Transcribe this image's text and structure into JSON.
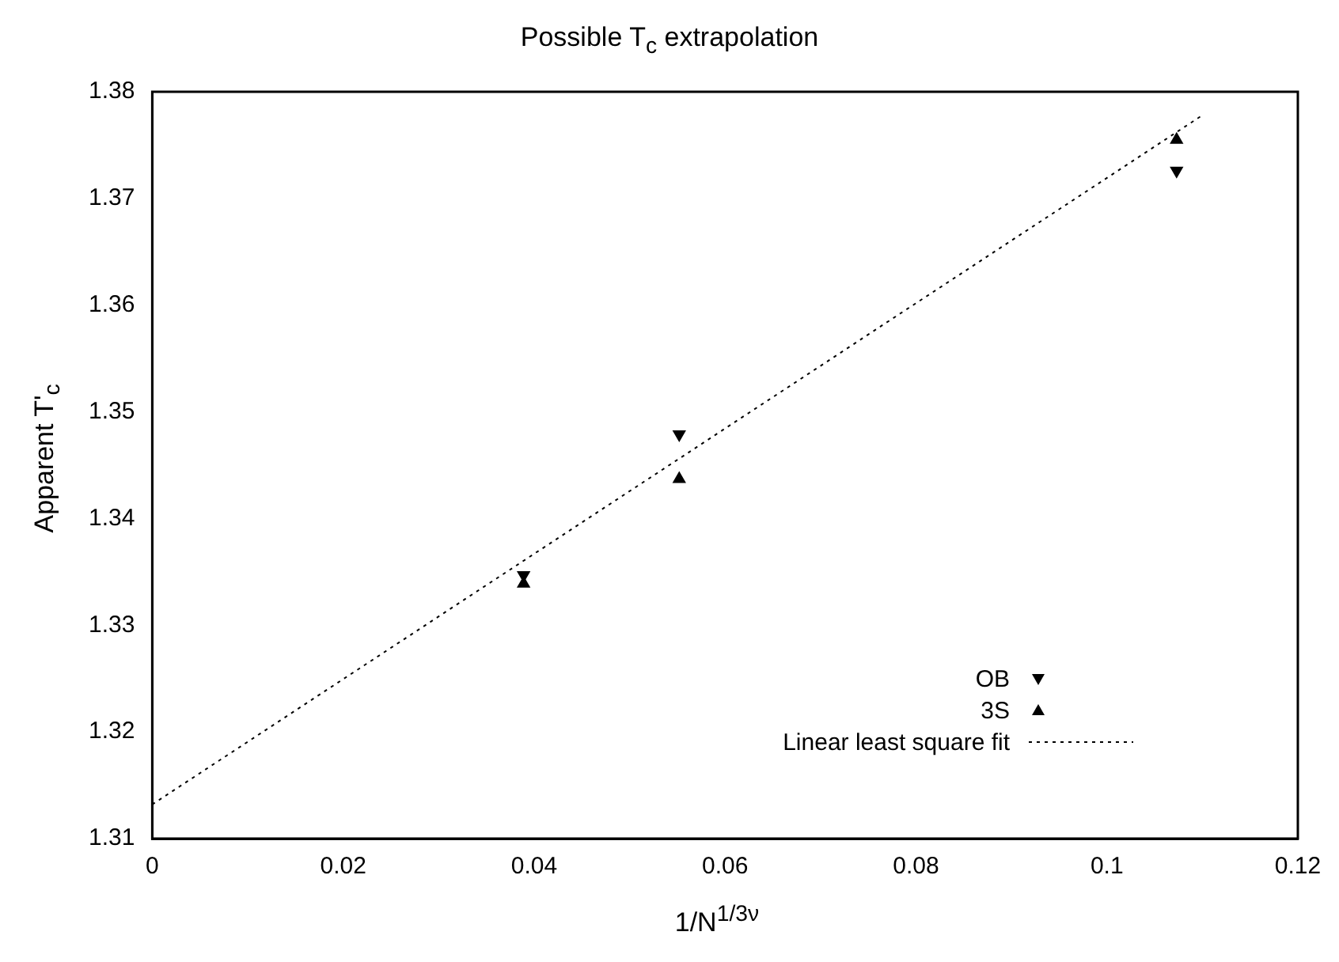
{
  "chart_data": {
    "type": "scatter",
    "title": "Possible T$_{c}$ extrapolation",
    "xlabel": "1/N$^{1/3ν}$",
    "ylabel": "Apparent T'$_{c}$",
    "xlim": [
      0,
      0.12
    ],
    "xticks": [
      0,
      0.02,
      0.04,
      0.06,
      0.08,
      0.1,
      0.12
    ],
    "ylim": [
      1.31,
      1.38
    ],
    "yticks": [
      1.31,
      1.32,
      1.33,
      1.34,
      1.35,
      1.36,
      1.37,
      1.38
    ],
    "grid": false,
    "legend": "bottom right",
    "series": [
      {
        "name": "OB",
        "color": "#000000",
        "marker": "triangle-down",
        "x": [
          0.0389,
          0.0552,
          0.1073
        ],
        "values": [
          1.3347,
          1.3479,
          1.3726
        ]
      },
      {
        "name": "3S",
        "color": "#000000",
        "marker": "triangle",
        "x": [
          0.0389,
          0.0552,
          0.1073
        ],
        "values": [
          1.3339,
          1.3437,
          1.3755
        ]
      },
      {
        "name": "Linear least square fit",
        "type": "line",
        "color": "#000000",
        "line_style": "dotted",
        "marker": "none",
        "x": [
          0,
          0.11
        ],
        "values": [
          1.3132,
          1.3778
        ]
      }
    ]
  }
}
